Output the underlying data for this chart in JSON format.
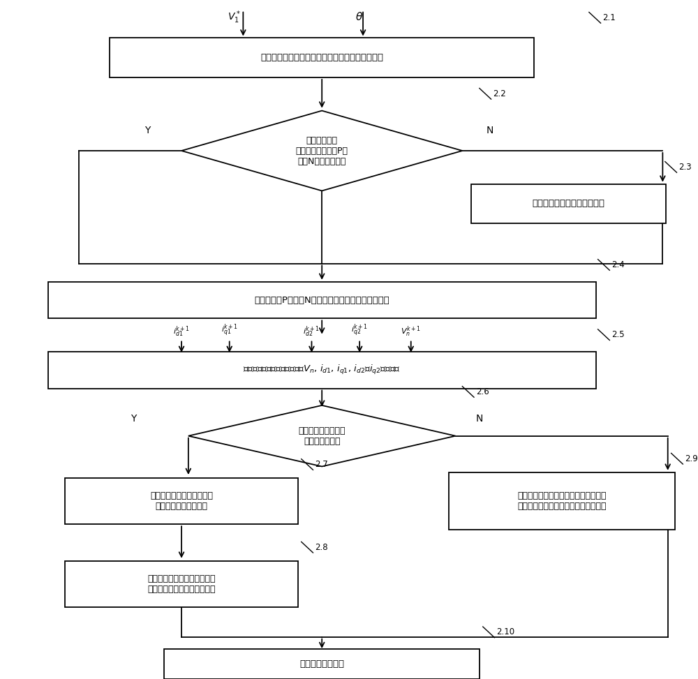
{
  "bg_color": "#ffffff",
  "line_color": "#000000",
  "box_color": "#ffffff",
  "text_color": "#000000",
  "box1_text": "选择参考矢量所在三角形扇区的矢量作为候选矢量",
  "dia1_text": "至少存在一个\n候选矢量不会导致P电\n平和N电平的切换？",
  "box23_text": "将选择范围扩大到六边形区域",
  "box4_text": "取消会导致P电平和N电平切换的候选矢量的候选资格",
  "box5_text": "基于电机和逆变器离散模型对$V_n$, $i_{d1}$, $i_{q1}$, $i_{d2}$和$i_{q2}$进行预测",
  "dia2_text": "至少存在一个候选矢\n量可以被外推？",
  "box7_text": "删除不可外推矢量，对其余\n候选矢量进行线性外推",
  "box8_text": "基于外推结果计算开关频率，\n作为价值函数对矢量进行评估",
  "box9_text": "将受控量控制误差绝对值加权求和的结\n果作为价值函数，对候选矢量进行评估",
  "box10_text": "确定最终装载矢量",
  "label_21": "2.1",
  "label_22": "2.2",
  "label_23": "2.3",
  "label_24": "2.4",
  "label_25": "2.5",
  "label_26": "2.6",
  "label_27": "2.7",
  "label_28": "2.8",
  "label_29": "2.9",
  "label_210": "2.10"
}
